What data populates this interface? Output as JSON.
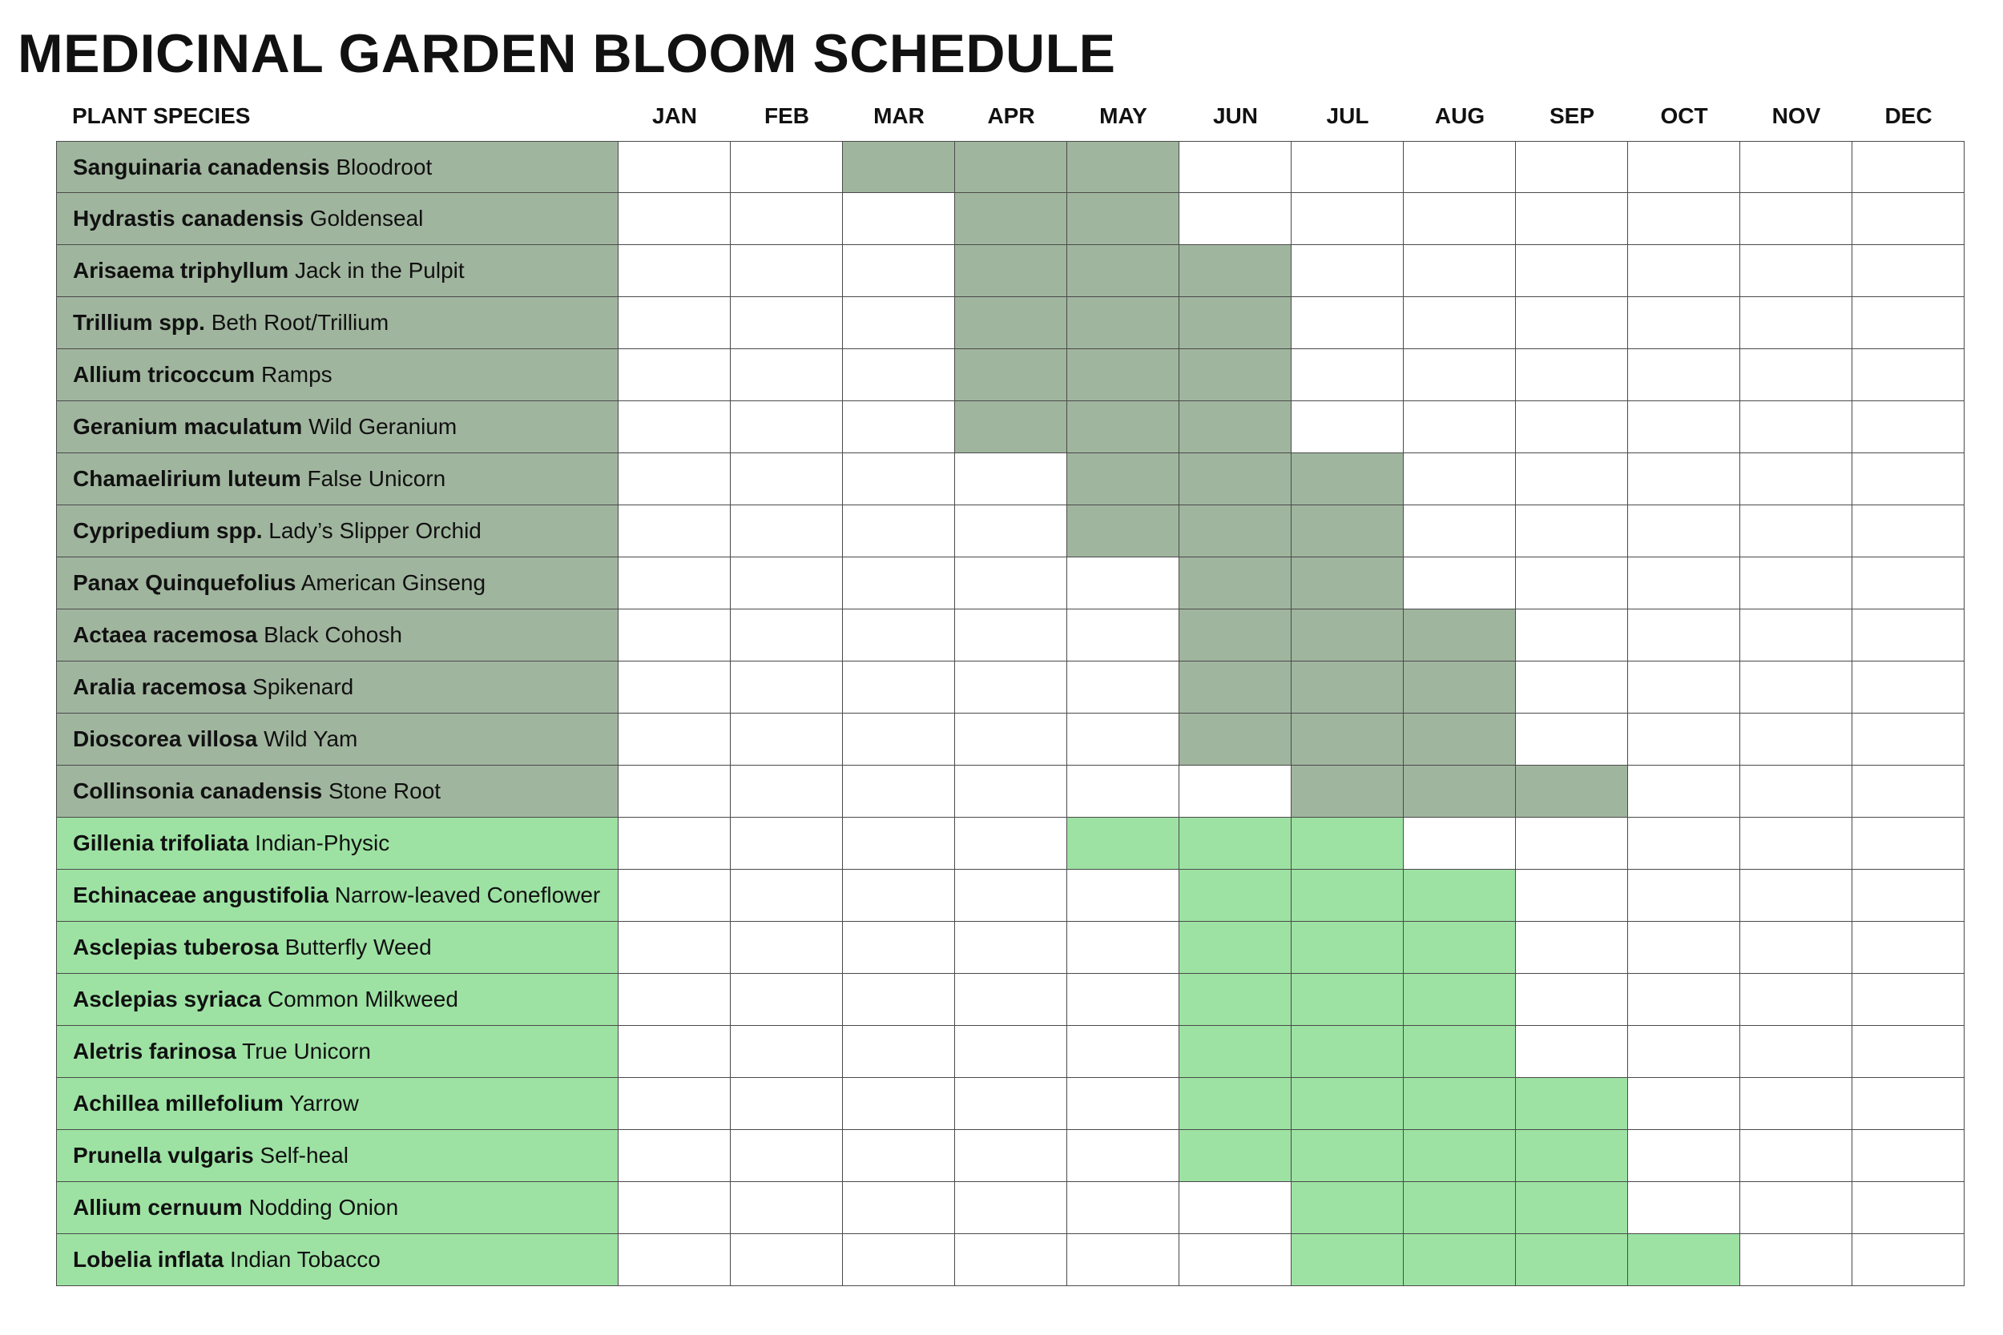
{
  "title": "MEDICINAL GARDEN BLOOM SCHEDULE",
  "colors": {
    "group_a": "#a0b59e",
    "group_b": "#9de2a3",
    "empty": "#ffffff",
    "grid": "#4a4a4a"
  },
  "chart_data": {
    "type": "table",
    "header": "PLANT SPECIES",
    "months": [
      "JAN",
      "FEB",
      "MAR",
      "APR",
      "MAY",
      "JUN",
      "JUL",
      "AUG",
      "SEP",
      "OCT",
      "NOV",
      "DEC"
    ],
    "rows": [
      {
        "scientific": "Sanguinaria canadensis",
        "common": "Bloodroot",
        "group": "a",
        "bloom": [
          "MAR",
          "APR",
          "MAY"
        ]
      },
      {
        "scientific": "Hydrastis canadensis",
        "common": "Goldenseal",
        "group": "a",
        "bloom": [
          "APR",
          "MAY"
        ]
      },
      {
        "scientific": "Arisaema triphyllum",
        "common": "Jack in the Pulpit",
        "group": "a",
        "bloom": [
          "APR",
          "MAY",
          "JUN"
        ]
      },
      {
        "scientific": "Trillium spp.",
        "common": "Beth Root/Trillium",
        "group": "a",
        "bloom": [
          "APR",
          "MAY",
          "JUN"
        ]
      },
      {
        "scientific": "Allium tricoccum",
        "common": "Ramps",
        "group": "a",
        "bloom": [
          "APR",
          "MAY",
          "JUN"
        ]
      },
      {
        "scientific": "Geranium maculatum",
        "common": "Wild Geranium",
        "group": "a",
        "bloom": [
          "APR",
          "MAY",
          "JUN"
        ]
      },
      {
        "scientific": "Chamaelirium luteum",
        "common": "False Unicorn",
        "group": "a",
        "bloom": [
          "MAY",
          "JUN",
          "JUL"
        ]
      },
      {
        "scientific": "Cypripedium spp.",
        "common": "Lady’s Slipper Orchid",
        "group": "a",
        "bloom": [
          "MAY",
          "JUN",
          "JUL"
        ]
      },
      {
        "scientific": "Panax Quinquefolius",
        "common": "American Ginseng",
        "group": "a",
        "bloom": [
          "JUN",
          "JUL"
        ]
      },
      {
        "scientific": "Actaea racemosa",
        "common": "Black Cohosh",
        "group": "a",
        "bloom": [
          "JUN",
          "JUL",
          "AUG"
        ]
      },
      {
        "scientific": "Aralia racemosa",
        "common": "Spikenard",
        "group": "a",
        "bloom": [
          "JUN",
          "JUL",
          "AUG"
        ]
      },
      {
        "scientific": "Dioscorea villosa",
        "common": "Wild Yam",
        "group": "a",
        "bloom": [
          "JUN",
          "JUL",
          "AUG"
        ]
      },
      {
        "scientific": "Collinsonia canadensis",
        "common": "Stone Root",
        "group": "a",
        "bloom": [
          "JUL",
          "AUG",
          "SEP"
        ]
      },
      {
        "scientific": "Gillenia trifoliata",
        "common": "Indian-Physic",
        "group": "b",
        "bloom": [
          "MAY",
          "JUN",
          "JUL"
        ]
      },
      {
        "scientific": "Echinaceae angustifolia",
        "common": "Narrow-leaved Coneflower",
        "group": "b",
        "bloom": [
          "JUN",
          "JUL",
          "AUG"
        ]
      },
      {
        "scientific": "Asclepias tuberosa",
        "common": "Butterfly Weed",
        "group": "b",
        "bloom": [
          "JUN",
          "JUL",
          "AUG"
        ]
      },
      {
        "scientific": "Asclepias syriaca",
        "common": "Common Milkweed",
        "group": "b",
        "bloom": [
          "JUN",
          "JUL",
          "AUG"
        ]
      },
      {
        "scientific": "Aletris farinosa",
        "common": "True Unicorn",
        "group": "b",
        "bloom": [
          "JUN",
          "JUL",
          "AUG"
        ]
      },
      {
        "scientific": "Achillea millefolium",
        "common": "Yarrow",
        "group": "b",
        "bloom": [
          "JUN",
          "JUL",
          "AUG",
          "SEP"
        ]
      },
      {
        "scientific": "Prunella vulgaris",
        "common": "Self-heal",
        "group": "b",
        "bloom": [
          "JUN",
          "JUL",
          "AUG",
          "SEP"
        ]
      },
      {
        "scientific": "Allium cernuum",
        "common": "Nodding Onion",
        "group": "b",
        "bloom": [
          "JUL",
          "AUG",
          "SEP"
        ]
      },
      {
        "scientific": "Lobelia inflata",
        "common": "Indian Tobacco",
        "group": "b",
        "bloom": [
          "JUL",
          "AUG",
          "SEP",
          "OCT"
        ]
      }
    ]
  }
}
